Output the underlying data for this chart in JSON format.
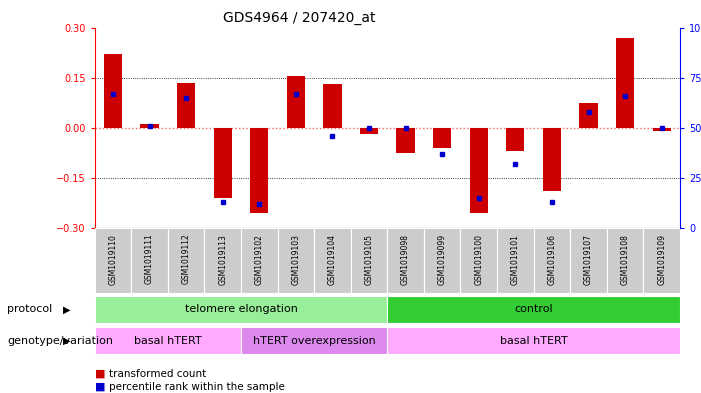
{
  "title": "GDS4964 / 207420_at",
  "samples": [
    "GSM1019110",
    "GSM1019111",
    "GSM1019112",
    "GSM1019113",
    "GSM1019102",
    "GSM1019103",
    "GSM1019104",
    "GSM1019105",
    "GSM1019098",
    "GSM1019099",
    "GSM1019100",
    "GSM1019101",
    "GSM1019106",
    "GSM1019107",
    "GSM1019108",
    "GSM1019109"
  ],
  "transformed_count": [
    0.22,
    0.01,
    0.135,
    -0.21,
    -0.255,
    0.155,
    0.13,
    -0.02,
    -0.075,
    -0.06,
    -0.255,
    -0.07,
    -0.19,
    0.075,
    0.27,
    -0.01
  ],
  "percentile_rank": [
    67,
    51,
    65,
    13,
    12,
    67,
    46,
    50,
    50,
    37,
    15,
    32,
    13,
    58,
    66,
    50
  ],
  "ylim_left": [
    -0.3,
    0.3
  ],
  "ylim_right": [
    0,
    100
  ],
  "yticks_left": [
    -0.3,
    -0.15,
    0,
    0.15,
    0.3
  ],
  "yticks_right": [
    0,
    25,
    50,
    75,
    100
  ],
  "protocol_groups": [
    {
      "label": "telomere elongation",
      "start": 0,
      "end": 7,
      "color": "#99ee99"
    },
    {
      "label": "control",
      "start": 8,
      "end": 15,
      "color": "#33cc33"
    }
  ],
  "genotype_groups": [
    {
      "label": "basal hTERT",
      "start": 0,
      "end": 3,
      "color": "#ffaaff"
    },
    {
      "label": "hTERT overexpression",
      "start": 4,
      "end": 7,
      "color": "#dd88ee"
    },
    {
      "label": "basal hTERT",
      "start": 8,
      "end": 15,
      "color": "#ffaaff"
    }
  ],
  "bar_color": "#cc0000",
  "dot_color": "#0000cc",
  "zero_line_color": "#ff6666",
  "grid_color": "black",
  "background_color": "white",
  "title_fontsize": 10,
  "tick_fontsize": 7,
  "label_fontsize": 8,
  "sample_fontsize": 5.5,
  "legend_fontsize": 7.5
}
